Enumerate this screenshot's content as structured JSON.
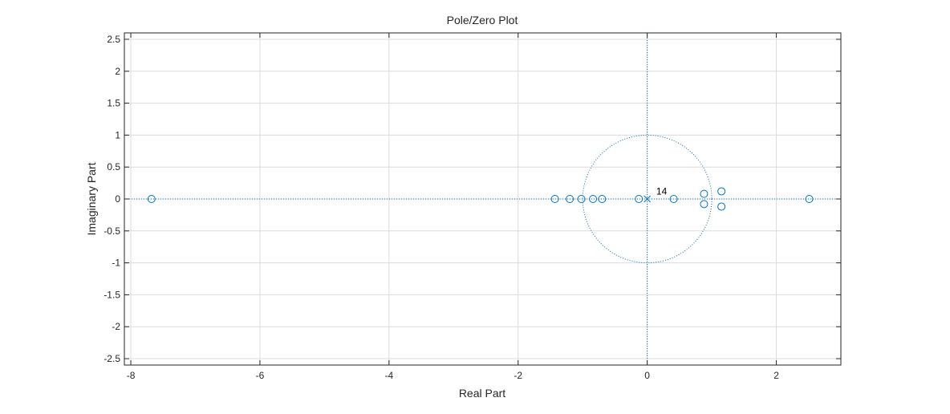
{
  "figure": {
    "title": "Pole/Zero Plot",
    "xlabel": "Real Part",
    "ylabel": "Imaginary Part"
  },
  "chart_data": {
    "type": "scatter",
    "title": "Pole/Zero Plot",
    "xlabel": "Real Part",
    "ylabel": "Imaginary Part",
    "xlim": [
      -8.1,
      3.0
    ],
    "ylim": [
      -2.6,
      2.6
    ],
    "xticks": [
      -8,
      -6,
      -4,
      -2,
      0,
      2
    ],
    "xtick_labels": [
      "-8",
      "-6",
      "-4",
      "-2",
      "0",
      "2"
    ],
    "yticks": [
      -2.5,
      -2,
      -1.5,
      -1,
      -0.5,
      0,
      0.5,
      1,
      1.5,
      2,
      2.5
    ],
    "ytick_labels": [
      "-2.5",
      "-2",
      "-1.5",
      "-1",
      "-0.5",
      "0",
      "0.5",
      "1",
      "1.5",
      "2",
      "2.5"
    ],
    "grid": true,
    "unit_circle": true,
    "series": [
      {
        "marker": "o",
        "color": "#0072BD",
        "points": [
          [
            -7.68,
            0
          ],
          [
            -1.43,
            0
          ],
          [
            -1.2,
            0
          ],
          [
            -1.02,
            0
          ],
          [
            -0.84,
            0
          ],
          [
            -0.7,
            0
          ],
          [
            -0.13,
            0
          ],
          [
            0.41,
            0
          ],
          [
            0.88,
            0.08
          ],
          [
            0.88,
            -0.08
          ],
          [
            1.15,
            0.12
          ],
          [
            1.15,
            -0.12
          ],
          [
            2.51,
            0
          ]
        ]
      },
      {
        "marker": "x",
        "color": "#0072BD",
        "points": [
          [
            0,
            0
          ]
        ]
      }
    ],
    "annotations": [
      {
        "text": "14",
        "x": 0.14,
        "y": 0.07
      }
    ],
    "colors": {
      "series": "#0072BD",
      "grid": "#dcdcdc",
      "axes": "#262626"
    }
  }
}
